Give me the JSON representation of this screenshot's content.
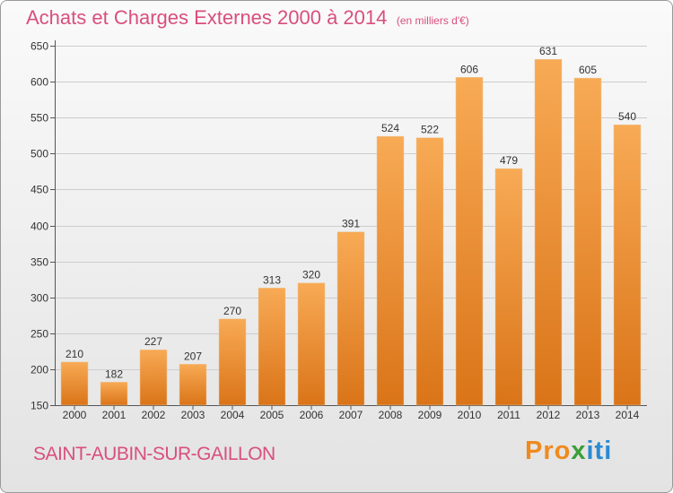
{
  "header": {
    "title": "Achats et Charges Externes 2000 à 2014",
    "unit": "(en milliers d'€)"
  },
  "footer": {
    "commune": "SAINT-AUBIN-SUR-GAILLON",
    "brand_parts": [
      "Pro",
      "x",
      "iti"
    ]
  },
  "colors": {
    "bar_light": "#f8aa55",
    "bar_dark": "#da7418",
    "accent": "#d94f7c",
    "grid": "#cccccc"
  },
  "chart_data": {
    "type": "bar",
    "title": "Achats et Charges Externes 2000 à 2014",
    "categories": [
      "2000",
      "2001",
      "2002",
      "2003",
      "2004",
      "2005",
      "2006",
      "2007",
      "2008",
      "2009",
      "2010",
      "2011",
      "2012",
      "2013",
      "2014"
    ],
    "values": [
      210,
      182,
      227,
      207,
      270,
      313,
      320,
      391,
      524,
      522,
      606,
      479,
      631,
      605,
      540
    ],
    "ylim": [
      150,
      650
    ],
    "yticks": [
      150,
      200,
      250,
      300,
      350,
      400,
      450,
      500,
      550,
      600,
      650
    ],
    "grid": true,
    "data_labels": true
  }
}
